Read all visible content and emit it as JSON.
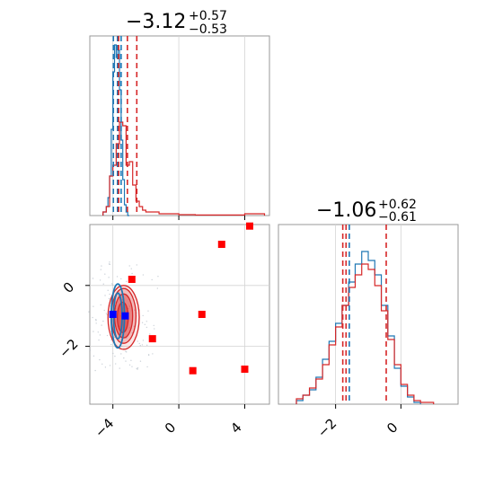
{
  "chart_data": {
    "type": "corner",
    "panels": [
      {
        "kind": "hist1d",
        "row": 0,
        "col": 0,
        "title": {
          "value": "−3.12",
          "upper": "+0.57",
          "lower": "−0.53"
        },
        "xlim": [
          -5.4,
          5.5
        ],
        "ylim": [
          0,
          1.0
        ],
        "xticks": [
          -4,
          0,
          4
        ],
        "grid": true,
        "series": [
          {
            "color": "#1f77b4",
            "bins": [
              -4.6,
              -4.5,
              -4.4,
              -4.3,
              -4.2,
              -4.1,
              -4.0,
              -3.9,
              -3.8,
              -3.7,
              -3.6,
              -3.5,
              -3.4,
              -3.3,
              -3.2,
              -3.1,
              -3.0
            ],
            "counts": [
              0.02,
              0.02,
              0.05,
              0.1,
              0.22,
              0.48,
              0.8,
              0.95,
              0.88,
              0.92,
              0.7,
              0.42,
              0.2,
              0.06,
              0.02,
              0.0
            ]
          },
          {
            "color": "#d62728",
            "bins": [
              -4.6,
              -4.4,
              -4.2,
              -4.0,
              -3.8,
              -3.6,
              -3.4,
              -3.2,
              -3.0,
              -2.8,
              -2.6,
              -2.4,
              -2.2,
              -2.0,
              -1.6,
              -1.2,
              -0.8,
              0,
              1,
              2,
              3,
              4,
              5.2
            ],
            "counts": [
              0.02,
              0.05,
              0.22,
              0.28,
              0.4,
              0.52,
              0.5,
              0.28,
              0.3,
              0.17,
              0.08,
              0.05,
              0.03,
              0.02,
              0.02,
              0.01,
              0.01,
              0.005,
              0.003,
              0.003,
              0.003,
              0.01
            ]
          }
        ],
        "vlines": [
          {
            "x": -3.97,
            "color": "#1f77b4"
          },
          {
            "x": -3.72,
            "color": "#1f77b4"
          },
          {
            "x": -3.5,
            "color": "#1f77b4"
          },
          {
            "x": -3.65,
            "color": "#d62728"
          },
          {
            "x": -3.12,
            "color": "#d62728"
          },
          {
            "x": -2.55,
            "color": "#d62728"
          }
        ]
      },
      {
        "kind": "hist1d",
        "row": 1,
        "col": 1,
        "title": {
          "value": "−1.06",
          "upper": "+0.62",
          "lower": "−0.61"
        },
        "xlim": [
          -3.75,
          1.75
        ],
        "ylim": [
          0,
          1.0
        ],
        "xticks": [
          -2,
          0
        ],
        "grid": true,
        "series": [
          {
            "color": "#1f77b4",
            "bins": [
              -3.2,
              -3.0,
              -2.8,
              -2.6,
              -2.4,
              -2.2,
              -2.0,
              -1.8,
              -1.6,
              -1.4,
              -1.2,
              -1.0,
              -0.8,
              -0.6,
              -0.4,
              -0.2,
              0.0,
              0.2,
              0.4,
              0.6
            ],
            "counts": [
              0.02,
              0.05,
              0.08,
              0.15,
              0.25,
              0.35,
              0.45,
              0.55,
              0.68,
              0.78,
              0.85,
              0.8,
              0.72,
              0.55,
              0.38,
              0.2,
              0.1,
              0.04,
              0.01
            ]
          },
          {
            "color": "#d62728",
            "bins": [
              -3.2,
              -3.0,
              -2.8,
              -2.6,
              -2.4,
              -2.2,
              -2.0,
              -1.8,
              -1.6,
              -1.4,
              -1.2,
              -1.0,
              -0.8,
              -0.6,
              -0.4,
              -0.2,
              0.0,
              0.2,
              0.4,
              0.6,
              1.0
            ],
            "counts": [
              0.03,
              0.05,
              0.09,
              0.14,
              0.22,
              0.33,
              0.43,
              0.55,
              0.65,
              0.72,
              0.78,
              0.75,
              0.66,
              0.52,
              0.36,
              0.22,
              0.11,
              0.05,
              0.02,
              0.01
            ]
          }
        ],
        "vlines": [
          {
            "x": -1.78,
            "color": "#d62728"
          },
          {
            "x": -1.68,
            "color": "#d62728"
          },
          {
            "x": -1.58,
            "color": "#1f77b4"
          },
          {
            "x": -0.45,
            "color": "#d62728"
          }
        ]
      },
      {
        "kind": "scatter2d",
        "row": 1,
        "col": 0,
        "xlim": [
          -5.4,
          5.5
        ],
        "ylim": [
          -3.9,
          2.0
        ],
        "xticks": [
          -4,
          0,
          4
        ],
        "yticks": [
          0,
          -2
        ],
        "grid": true,
        "red_contours": [
          {
            "cx": -3.35,
            "cy": -1.05,
            "rx": 0.95,
            "ry": 1.05,
            "opacity": 0.22
          },
          {
            "cx": -3.35,
            "cy": -1.0,
            "rx": 0.75,
            "ry": 0.9,
            "opacity": 0.45
          },
          {
            "cx": -3.35,
            "cy": -1.0,
            "rx": 0.55,
            "ry": 0.72,
            "opacity": 0.75
          },
          {
            "cx": -3.4,
            "cy": -1.05,
            "rx": 0.33,
            "ry": 0.5,
            "opacity": 0.9
          }
        ],
        "blue_contours": [
          {
            "cx": -3.7,
            "cy": -1.0,
            "rx": 0.4,
            "ry": 1.05
          },
          {
            "cx": -3.7,
            "cy": -1.0,
            "rx": 0.26,
            "ry": 0.75
          }
        ],
        "red_markers": [
          {
            "x": 2.6,
            "y": 1.35
          },
          {
            "x": -2.85,
            "y": 0.2
          },
          {
            "x": 1.4,
            "y": -0.95
          },
          {
            "x": -1.6,
            "y": -1.75
          },
          {
            "x": 0.85,
            "y": -2.8
          },
          {
            "x": 4.0,
            "y": -2.75
          },
          {
            "x": 4.3,
            "y": 1.95
          }
        ],
        "blue_markers": [
          {
            "x": -4.0,
            "y": -0.95
          },
          {
            "x": -3.25,
            "y": -1.0
          }
        ]
      }
    ]
  }
}
